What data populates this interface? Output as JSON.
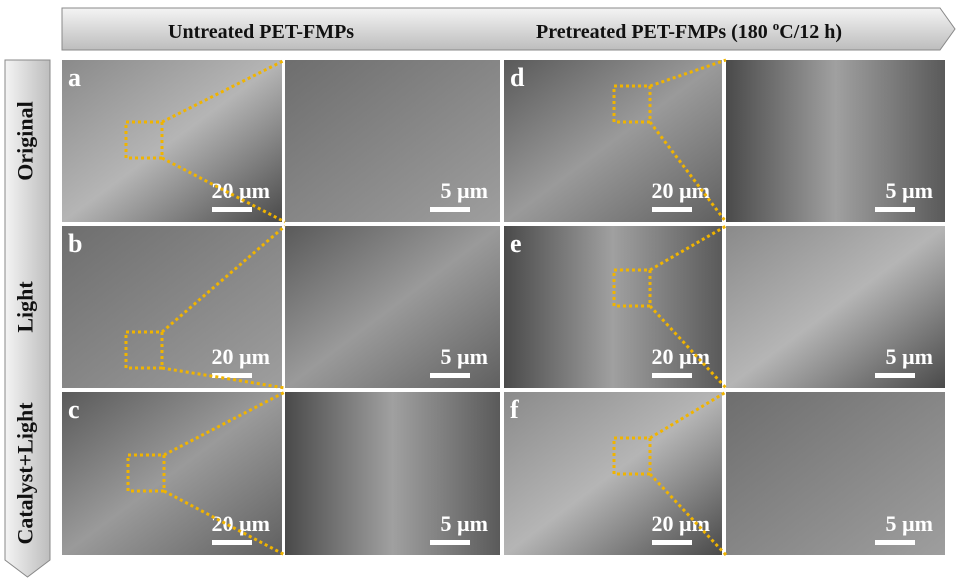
{
  "header": {
    "left": "Untreated PET-FMPs",
    "right": [
      "Pretreated PET-FMPs (180 ",
      "o",
      "C/12 h)"
    ]
  },
  "rows": [
    {
      "label": "Original",
      "panels": [
        {
          "letter": "a",
          "scale": "20 µm"
        },
        {
          "scale": "5 µm"
        },
        {
          "letter": "d",
          "scale": "20 µm"
        },
        {
          "scale": "5 µm"
        }
      ]
    },
    {
      "label": "Light",
      "panels": [
        {
          "letter": "b",
          "scale": "20 µm"
        },
        {
          "scale": "5 µm"
        },
        {
          "letter": "e",
          "scale": "20 µm"
        },
        {
          "scale": "5 µm"
        }
      ]
    },
    {
      "label": "Catalyst+Light",
      "panels": [
        {
          "letter": "c",
          "scale": "20 µm"
        },
        {
          "scale": "5 µm"
        },
        {
          "letter": "f",
          "scale": "20 µm"
        },
        {
          "scale": "5 µm"
        }
      ]
    }
  ]
}
